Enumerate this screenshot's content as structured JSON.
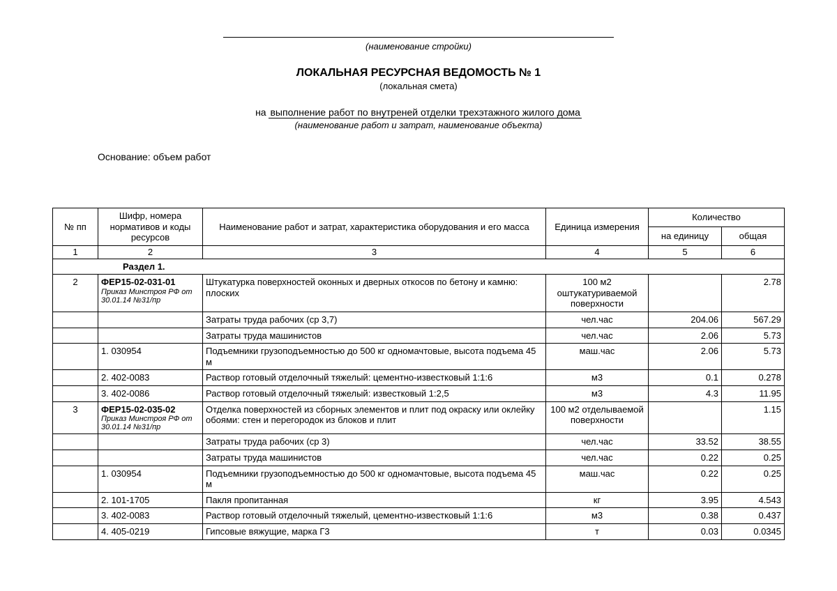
{
  "header": {
    "caption1": "(наименование стройки)",
    "title": "ЛОКАЛЬНАЯ РЕСУРСНАЯ ВЕДОМОСТЬ  № 1",
    "subtitle": "(локальная смета)",
    "na_prefix": "на ",
    "na_text": "выполнение работ по внутреней отделки трехэтажного жилого дома",
    "caption2": "(наименование работ и затрат, наименование объекта)",
    "basis": "Основание: объем работ"
  },
  "columns": {
    "c1": "№ пп",
    "c2": "Шифр, номера нормативов и коды ресурсов",
    "c3": "Наименование работ и затрат, характеристика оборудования и его масса",
    "c4": "Единица измерения",
    "c5group": "Количество",
    "c5": "на единицу",
    "c6": "общая"
  },
  "numrow": {
    "n1": "1",
    "n2": "2",
    "n3": "3",
    "n4": "4",
    "n5": "5",
    "n6": "6"
  },
  "section": "Раздел 1.",
  "rows": [
    {
      "npp": "2",
      "code_main": "ФЕР15-02-031-01",
      "code_sub": "Приказ Минстроя РФ от 30.01.14 №31/пр",
      "name": "Штукатурка поверхностей оконных и дверных откосов по бетону и камню: плоских",
      "unit": "100 м2 оштукатуриваемой поверхности",
      "per": "",
      "total": "2.78"
    },
    {
      "npp": "",
      "code": "",
      "name": "Затраты труда рабочих (ср 3,7)",
      "unit": "чел.час",
      "per": "204.06",
      "total": "567.29"
    },
    {
      "npp": "",
      "code": "",
      "name": "Затраты труда машинистов",
      "unit": "чел.час",
      "per": "2.06",
      "total": "5.73"
    },
    {
      "npp": "",
      "code": "1. 030954",
      "name": "Подъемники грузоподъемностью до 500 кг одномачтовые, высота подъема 45 м",
      "unit": "маш.час",
      "per": "2.06",
      "total": "5.73"
    },
    {
      "npp": "",
      "code": "2. 402-0083",
      "name": "Раствор готовый отделочный тяжелый: цементно-известковый 1:1:6",
      "unit": "м3",
      "per": "0.1",
      "total": "0.278"
    },
    {
      "npp": "",
      "code": "3. 402-0086",
      "name": "Раствор готовый отделочный тяжелый: известковый 1:2,5",
      "unit": "м3",
      "per": "4.3",
      "total": "11.95"
    },
    {
      "npp": "3",
      "code_main": "ФЕР15-02-035-02",
      "code_sub": "Приказ Минстроя РФ от 30.01.14 №31/пр",
      "name": "Отделка поверхностей из сборных элементов и плит под окраску или оклейку обоями: стен и перегородок из блоков и плит",
      "unit": "100 м2 отделываемой поверхности",
      "per": "",
      "total": "1.15"
    },
    {
      "npp": "",
      "code": "",
      "name": "Затраты труда рабочих (ср 3)",
      "unit": "чел.час",
      "per": "33.52",
      "total": "38.55"
    },
    {
      "npp": "",
      "code": "",
      "name": "Затраты труда машинистов",
      "unit": "чел.час",
      "per": "0.22",
      "total": "0.25"
    },
    {
      "npp": "",
      "code": "1. 030954",
      "name": "Подъемники грузоподъемностью до 500 кг одномачтовые, высота подъема 45 м",
      "unit": "маш.час",
      "per": "0.22",
      "total": "0.25"
    },
    {
      "npp": "",
      "code": "2. 101-1705",
      "name": "Пакля пропитанная",
      "unit": "кг",
      "per": "3.95",
      "total": "4.543"
    },
    {
      "npp": "",
      "code": "3. 402-0083",
      "name": "Раствор готовый отделочный тяжелый, цементно-известковый 1:1:6",
      "unit": "м3",
      "per": "0.38",
      "total": "0.437"
    },
    {
      "npp": "",
      "code": "4. 405-0219",
      "name": "Гипсовые вяжущие, марка Г3",
      "unit": "т",
      "per": "0.03",
      "total": "0.0345"
    }
  ]
}
